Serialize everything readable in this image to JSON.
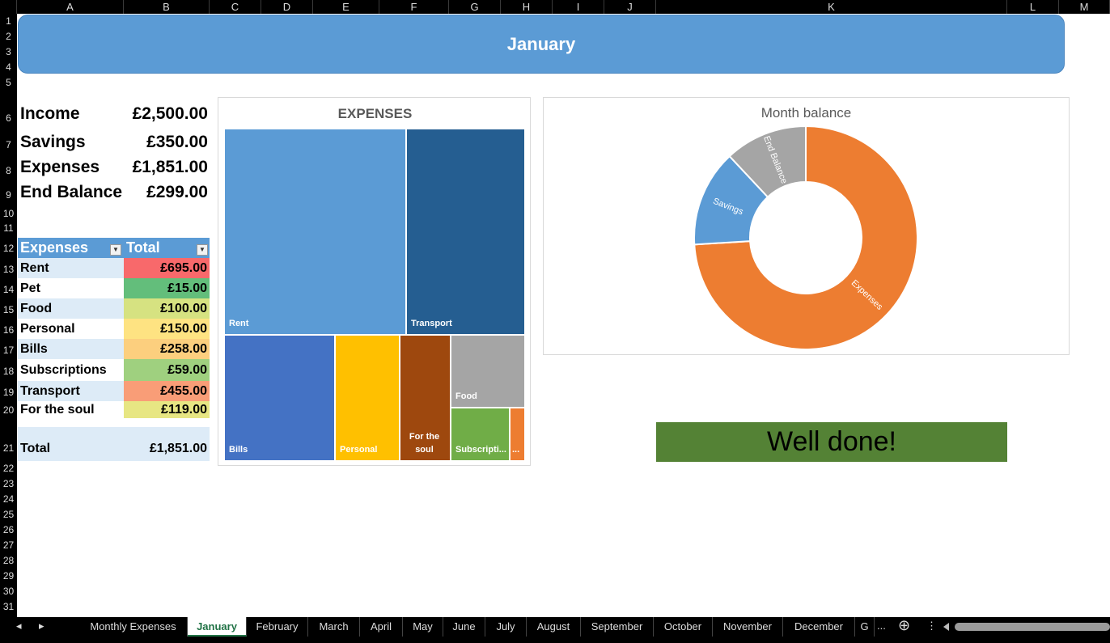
{
  "columns": [
    "A",
    "B",
    "C",
    "D",
    "E",
    "F",
    "G",
    "H",
    "I",
    "J",
    "K",
    "L",
    "M"
  ],
  "rows": [
    "1",
    "2",
    "3",
    "4",
    "5",
    "6",
    "7",
    "8",
    "9",
    "10",
    "11",
    "12",
    "13",
    "14",
    "15",
    "16",
    "17",
    "18",
    "19",
    "20",
    "21",
    "22",
    "23",
    "24",
    "25",
    "26",
    "27",
    "28",
    "29",
    "30",
    "31"
  ],
  "banner": {
    "title": "January"
  },
  "summary": {
    "income": {
      "label": "Income",
      "value": "£2,500.00"
    },
    "savings": {
      "label": "Savings",
      "value": "£350.00"
    },
    "expenses": {
      "label": "Expenses",
      "value": "£1,851.00"
    },
    "end_balance": {
      "label": "End Balance",
      "value": "£299.00"
    }
  },
  "expense_table": {
    "headers": {
      "name": "Expenses",
      "total": "Total"
    },
    "rows": [
      {
        "name": "Rent",
        "value": "£695.00",
        "color": "#f8696b"
      },
      {
        "name": "Pet",
        "value": "£15.00",
        "color": "#63be7b"
      },
      {
        "name": "Food",
        "value": "£100.00",
        "color": "#d6e281"
      },
      {
        "name": "Personal",
        "value": "£150.00",
        "color": "#fee382"
      },
      {
        "name": "Bills",
        "value": "£258.00",
        "color": "#fccf7e"
      },
      {
        "name": "Subscriptions",
        "value": "£59.00",
        "color": "#9fd07f"
      },
      {
        "name": "Transport",
        "value": "£455.00",
        "color": "#f99d77"
      },
      {
        "name": "For the soul",
        "value": "£119.00",
        "color": "#e7e683"
      }
    ],
    "total": {
      "label": "Total",
      "value": "£1,851.00"
    }
  },
  "chart_data": [
    {
      "type": "treemap",
      "title": "EXPENSES",
      "items": [
        {
          "name": "Rent",
          "value": 695,
          "color": "#5b9bd5"
        },
        {
          "name": "Transport",
          "value": 455,
          "color": "#255e91"
        },
        {
          "name": "Bills",
          "value": 258,
          "color": "#4472c4"
        },
        {
          "name": "Personal",
          "value": 150,
          "color": "#ffc000"
        },
        {
          "name": "For the soul",
          "value": 119,
          "color": "#9e480e"
        },
        {
          "name": "Food",
          "value": 100,
          "color": "#a5a5a5"
        },
        {
          "name": "Subscripti...",
          "value": 59,
          "color": "#70ad47"
        },
        {
          "name": "...",
          "value": 15,
          "color": "#ed7d31"
        }
      ]
    },
    {
      "type": "pie",
      "title": "Month balance",
      "slices": [
        {
          "name": "Expenses",
          "value": 1851,
          "color": "#ed7d31"
        },
        {
          "name": "Savings",
          "value": 350,
          "color": "#5b9bd5"
        },
        {
          "name": "End Balance",
          "value": 299,
          "color": "#a5a5a5"
        }
      ]
    }
  ],
  "message": "Well done!",
  "tabs": [
    "Monthly Expenses",
    "January",
    "February",
    "March",
    "April",
    "May",
    "June",
    "July",
    "August",
    "September",
    "October",
    "November",
    "December",
    "G"
  ],
  "active_tab": "January",
  "tab_more": "...",
  "icons": {
    "prev": "◂",
    "next": "▸",
    "add": "⊕",
    "menu": "⋮"
  }
}
